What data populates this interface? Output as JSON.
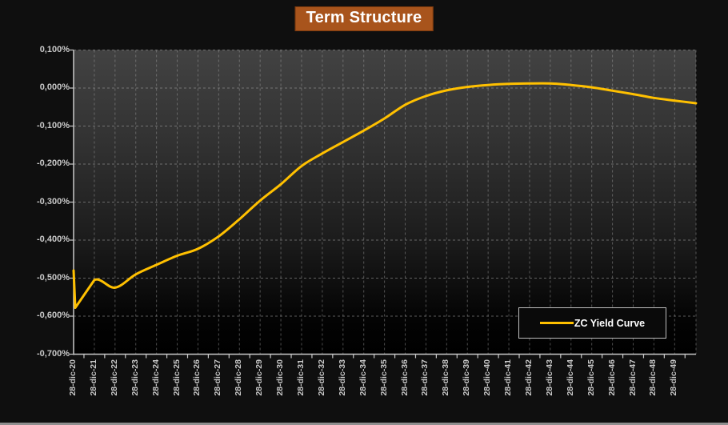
{
  "title": {
    "text": "Term Structure"
  },
  "legend": {
    "label": "ZC Yield Curve"
  },
  "colors": {
    "curve": "#FFC000",
    "title_bg": "#A8541C",
    "title_border": "#7E3B0E",
    "grid": "#A6A6A6",
    "axis": "#C8C8C8",
    "tick_label": "#C9C9C9",
    "page_bg": "#0F0F0F",
    "legend_border": "#BDBDBD",
    "legend_bg": "#0A0A0A",
    "bottom_strip": "#8F8F8F"
  },
  "chart_data": {
    "type": "line",
    "title": "Term Structure",
    "categories": [
      "28-dic-20",
      "28-dic-21",
      "28-dic-22",
      "28-dic-23",
      "28-dic-24",
      "28-dic-25",
      "28-dic-26",
      "28-dic-27",
      "28-dic-28",
      "28-dic-29",
      "28-dic-30",
      "28-dic-31",
      "28-dic-32",
      "28-dic-33",
      "28-dic-34",
      "28-dic-35",
      "28-dic-36",
      "28-dic-37",
      "28-dic-38",
      "28-dic-39",
      "28-dic-40",
      "28-dic-41",
      "28-dic-42",
      "28-dic-43",
      "28-dic-44",
      "28-dic-45",
      "28-dic-46",
      "28-dic-47",
      "28-dic-48",
      "28-dic-49"
    ],
    "x_range": [
      0,
      30.03
    ],
    "ylim": [
      -0.7,
      0.1
    ],
    "xlabel": "",
    "ylabel": "",
    "grid": true,
    "legend_position": "bottom-right",
    "y_axis": {
      "ticks": [
        {
          "label": "0,100%",
          "value": 0.1
        },
        {
          "label": "0,000%",
          "value": 0.0
        },
        {
          "label": "-0,100%",
          "value": -0.1
        },
        {
          "label": "-0,200%",
          "value": -0.2
        },
        {
          "label": "-0,300%",
          "value": -0.3
        },
        {
          "label": "-0,400%",
          "value": -0.4
        },
        {
          "label": "-0,500%",
          "value": -0.5
        },
        {
          "label": "-0,600%",
          "value": -0.6
        },
        {
          "label": "-0,700%",
          "value": -0.7
        }
      ]
    },
    "series": [
      {
        "name": "ZC Yield Curve",
        "color": "#FFC000",
        "points": [
          [
            0,
            -0.48
          ],
          [
            0.08,
            -0.578
          ],
          [
            1,
            -0.505
          ],
          [
            2,
            -0.525
          ],
          [
            3,
            -0.49
          ],
          [
            4,
            -0.465
          ],
          [
            5,
            -0.441
          ],
          [
            6,
            -0.423
          ],
          [
            7,
            -0.39
          ],
          [
            8,
            -0.345
          ],
          [
            9,
            -0.296
          ],
          [
            10,
            -0.253
          ],
          [
            11,
            -0.205
          ],
          [
            12,
            -0.172
          ],
          [
            13,
            -0.142
          ],
          [
            14,
            -0.112
          ],
          [
            15,
            -0.08
          ],
          [
            16,
            -0.044
          ],
          [
            17,
            -0.021
          ],
          [
            18,
            -0.006
          ],
          [
            19,
            0.003
          ],
          [
            20,
            0.008
          ],
          [
            21,
            0.011
          ],
          [
            22,
            0.012
          ],
          [
            23,
            0.012
          ],
          [
            24,
            0.008
          ],
          [
            25,
            0.002
          ],
          [
            26,
            -0.007
          ],
          [
            27,
            -0.016
          ],
          [
            28,
            -0.026
          ],
          [
            29,
            -0.033
          ],
          [
            30.03,
            -0.04
          ]
        ]
      }
    ]
  }
}
